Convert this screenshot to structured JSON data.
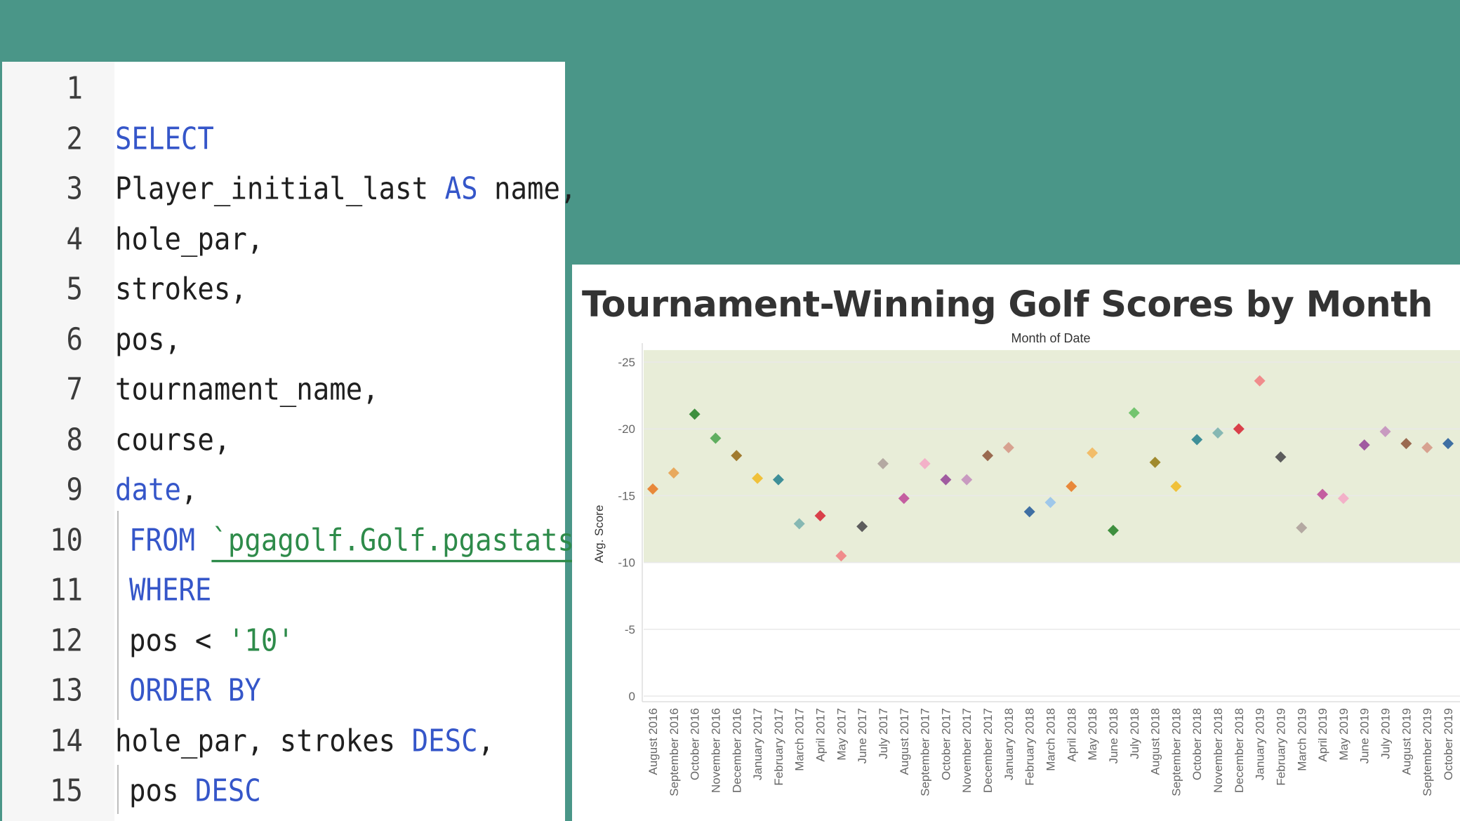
{
  "editor": {
    "lines": [
      {
        "n": "1",
        "parts": []
      },
      {
        "n": "2",
        "parts": [
          {
            "t": "SELECT",
            "c": "kw"
          }
        ]
      },
      {
        "n": "3",
        "parts": [
          {
            "t": "Player_initial_last ",
            "c": "id"
          },
          {
            "t": "AS",
            "c": "kw"
          },
          {
            "t": " name,",
            "c": "id"
          }
        ]
      },
      {
        "n": "4",
        "parts": [
          {
            "t": "hole_par,",
            "c": "id"
          }
        ]
      },
      {
        "n": "5",
        "parts": [
          {
            "t": "strokes,",
            "c": "id"
          }
        ]
      },
      {
        "n": "6",
        "parts": [
          {
            "t": "pos,",
            "c": "id"
          }
        ]
      },
      {
        "n": "7",
        "parts": [
          {
            "t": "tournament_name,",
            "c": "id"
          }
        ]
      },
      {
        "n": "8",
        "parts": [
          {
            "t": "course,",
            "c": "id"
          }
        ]
      },
      {
        "n": "9",
        "parts": [
          {
            "t": "date",
            "c": "kw"
          },
          {
            "t": ",",
            "c": "id"
          }
        ]
      },
      {
        "n": "10",
        "indent": true,
        "parts": [
          {
            "t": "FROM",
            "c": "kw"
          },
          {
            "t": " ",
            "c": "id"
          },
          {
            "t": "`pgagolf.Golf.pgastats`",
            "c": "tick"
          }
        ]
      },
      {
        "n": "11",
        "indent": true,
        "parts": [
          {
            "t": "WHERE",
            "c": "kw"
          }
        ]
      },
      {
        "n": "12",
        "indent": true,
        "parts": [
          {
            "t": "pos < ",
            "c": "id"
          },
          {
            "t": "'10'",
            "c": "str"
          }
        ]
      },
      {
        "n": "13",
        "indent": true,
        "parts": [
          {
            "t": "ORDER BY",
            "c": "kw"
          }
        ]
      },
      {
        "n": "14",
        "parts": [
          {
            "t": "hole_par, strokes ",
            "c": "id"
          },
          {
            "t": "DESC",
            "c": "kw"
          },
          {
            "t": ",",
            "c": "id"
          }
        ]
      },
      {
        "n": "15",
        "indent": true,
        "parts": [
          {
            "t": "pos ",
            "c": "id"
          },
          {
            "t": "DESC",
            "c": "kw"
          }
        ]
      }
    ]
  },
  "chart_panel": {
    "title": "Tournament-Winning Golf Scores by Month"
  },
  "chart_data": {
    "type": "scatter",
    "marker": "diamond",
    "title": "Tournament-Winning Golf Scores by Month",
    "xlabel": "Month of Date",
    "ylabel": "Avg. Score",
    "y_axis_reversed": true,
    "ylim": [
      0,
      -26
    ],
    "yticks": [
      0,
      -5,
      -10,
      -15,
      -20,
      -25
    ],
    "band": {
      "from": -10,
      "to": -25.9,
      "color": "#e8edd8"
    },
    "grid": true,
    "categories": [
      "August 2016",
      "September 2016",
      "October 2016",
      "November 2016",
      "December 2016",
      "January 2017",
      "February 2017",
      "March 2017",
      "April 2017",
      "May 2017",
      "June 2017",
      "July 2017",
      "August 2017",
      "September 2017",
      "October 2017",
      "November 2017",
      "December 2017",
      "January 2018",
      "February 2018",
      "March 2018",
      "April 2018",
      "May 2018",
      "June 2018",
      "July 2018",
      "August 2018",
      "September 2018",
      "October 2018",
      "November 2018",
      "December 2018",
      "January 2019",
      "February 2019",
      "March 2019",
      "April 2019",
      "May 2019",
      "June 2019",
      "July 2019",
      "August 2019",
      "September 2019",
      "October 2019"
    ],
    "values": [
      -15.5,
      -16.7,
      -21.1,
      -19.3,
      -18.0,
      -16.3,
      -16.2,
      -12.9,
      -13.5,
      -10.5,
      -12.7,
      -17.4,
      -14.8,
      -17.4,
      -16.2,
      -16.2,
      -18.0,
      -18.6,
      -13.8,
      -14.5,
      -15.7,
      -18.2,
      -12.4,
      -21.2,
      -17.5,
      -15.7,
      -19.2,
      -19.7,
      -20.0,
      -23.6,
      -17.9,
      -12.6,
      -15.1,
      -14.8,
      -18.8,
      -19.8,
      -18.9,
      -18.6,
      -18.9
    ],
    "colors": [
      "#e8883a",
      "#e8a95e",
      "#3e8f3e",
      "#5fae5f",
      "#a07a2e",
      "#f0c13a",
      "#3e8f98",
      "#86b8b3",
      "#d9404a",
      "#f08c8c",
      "#5c5c5c",
      "#b4a9a2",
      "#c45ea0",
      "#f3b1c8",
      "#a05ba0",
      "#c89ac0",
      "#9a6a50",
      "#d7a290",
      "#3f6fa3",
      "#9fc8ea",
      "#e8883a",
      "#f2bd6a",
      "#3e8f3e",
      "#73c46f",
      "#a08a2e",
      "#f0c13a",
      "#3e8f98",
      "#86b8b3",
      "#d9404a",
      "#f08c8c",
      "#5c5c5c",
      "#b4a9a2",
      "#c45ea0",
      "#f3b1c8",
      "#a05ba0",
      "#c89ac0",
      "#9a6a50",
      "#d7a290",
      "#3f6fa3"
    ]
  }
}
